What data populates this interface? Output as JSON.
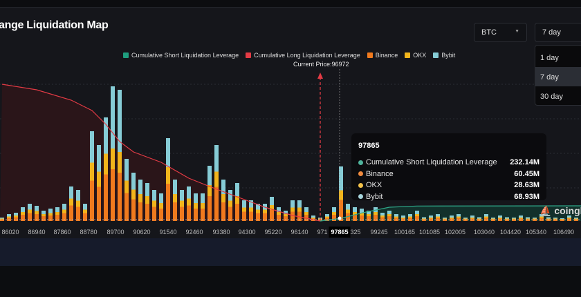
{
  "header": {
    "title": "ange Liquidation Map",
    "coin_select": "BTC",
    "period_select": "7 day",
    "period_options": [
      "1 day",
      "7 day",
      "30 day"
    ],
    "period_selected": "7 day"
  },
  "colors": {
    "short": "#1f9e7f",
    "long": "#e33b45",
    "binance": "#f07a1e",
    "okx": "#f2b51c",
    "bybit": "#86ccd6"
  },
  "current_price_label": "Current Price:96972",
  "tooltip": {
    "title": "97865",
    "rows": [
      {
        "name": "Cumulative Short Liquidation Leverage",
        "value": "232.14M",
        "color": "#4fb39c"
      },
      {
        "name": "Binance",
        "value": "60.45M",
        "color": "#f08a3e"
      },
      {
        "name": "OKX",
        "value": "28.63M",
        "color": "#f2c14a"
      },
      {
        "name": "Bybit",
        "value": "68.93M",
        "color": "#a6d3da"
      }
    ]
  },
  "watermark": "coinglass",
  "chart_data": {
    "type": "bar",
    "stacked": true,
    "legend": [
      "Cumulative Short Liquidation Leverage",
      "Cumulative Long Liquidation Leverage",
      "Binance",
      "OKX",
      "Bybit"
    ],
    "legend_placement": "top",
    "x_tick_labels": [
      "86020",
      "86940",
      "87860",
      "88780",
      "89700",
      "90620",
      "91540",
      "92460",
      "93380",
      "94300",
      "95220",
      "96140",
      "971",
      "97865",
      "325",
      "99245",
      "100165",
      "101085",
      "102005",
      "103040",
      "104420",
      "105340",
      "106490"
    ],
    "highlighted_tick": "97865",
    "current_price": 96972,
    "grid": "horizontal dotted",
    "series": [
      {
        "name": "Binance",
        "values": [
          5,
          9,
          11,
          18,
          23,
          20,
          14,
          16,
          18,
          23,
          45,
          41,
          23,
          117,
          99,
          135,
          150,
          140,
          81,
          63,
          54,
          50,
          41,
          36,
          108,
          54,
          41,
          45,
          36,
          36,
          72,
          99,
          54,
          41,
          50,
          27,
          27,
          23,
          23,
          32,
          18,
          14,
          27,
          27,
          18,
          7,
          5,
          9,
          18,
          60.45,
          23,
          18,
          16,
          14,
          18,
          11,
          14,
          9,
          7,
          9,
          14,
          5,
          7,
          9,
          5,
          7,
          9,
          5,
          7,
          5,
          9,
          5,
          7,
          5,
          5,
          7,
          5,
          5,
          9,
          5,
          5,
          4,
          7,
          5
        ]
      },
      {
        "name": "OKX",
        "values": [
          2,
          4,
          5,
          8,
          10,
          9,
          6,
          7,
          8,
          10,
          20,
          18,
          10,
          52,
          44,
          60,
          60,
          60,
          36,
          28,
          24,
          22,
          18,
          16,
          48,
          24,
          18,
          20,
          16,
          16,
          32,
          44,
          24,
          18,
          22,
          12,
          12,
          10,
          10,
          14,
          8,
          6,
          12,
          12,
          8,
          3,
          2,
          4,
          8,
          28.63,
          10,
          8,
          7,
          6,
          8,
          5,
          6,
          4,
          3,
          4,
          6,
          2,
          3,
          4,
          2,
          3,
          4,
          2,
          3,
          2,
          4,
          2,
          3,
          2,
          2,
          3,
          2,
          2,
          4,
          2,
          2,
          2,
          3,
          2
        ]
      },
      {
        "name": "Bybit",
        "values": [
          3,
          7,
          8,
          14,
          17,
          15,
          10,
          13,
          14,
          17,
          35,
          31,
          17,
          91,
          77,
          105,
          180,
          180,
          63,
          49,
          42,
          38,
          31,
          28,
          84,
          42,
          31,
          35,
          28,
          28,
          56,
          77,
          42,
          31,
          38,
          21,
          21,
          17,
          17,
          24,
          14,
          10,
          21,
          21,
          14,
          6,
          3,
          7,
          14,
          68.93,
          17,
          14,
          13,
          10,
          14,
          8,
          10,
          7,
          6,
          7,
          10,
          4,
          6,
          7,
          3,
          6,
          7,
          3,
          6,
          4,
          7,
          3,
          6,
          4,
          3,
          6,
          4,
          3,
          7,
          4,
          3,
          2,
          6,
          3
        ]
      }
    ],
    "cumulative_long": [
      [
        0,
        11880
      ],
      [
        5,
        11400
      ],
      [
        10,
        10500
      ],
      [
        13,
        9600
      ],
      [
        15,
        8400
      ],
      [
        17,
        6900
      ],
      [
        19,
        6000
      ],
      [
        23,
        5100
      ],
      [
        27,
        3720
      ],
      [
        30,
        3000
      ],
      [
        34,
        2100
      ],
      [
        38,
        1200
      ],
      [
        42,
        480
      ],
      [
        46,
        0
      ]
    ],
    "cumulative_short": [
      [
        46,
        0
      ],
      [
        49,
        232.14
      ],
      [
        52,
        700
      ],
      [
        56,
        1200
      ],
      [
        60,
        1300
      ],
      [
        83,
        1320
      ]
    ]
  }
}
